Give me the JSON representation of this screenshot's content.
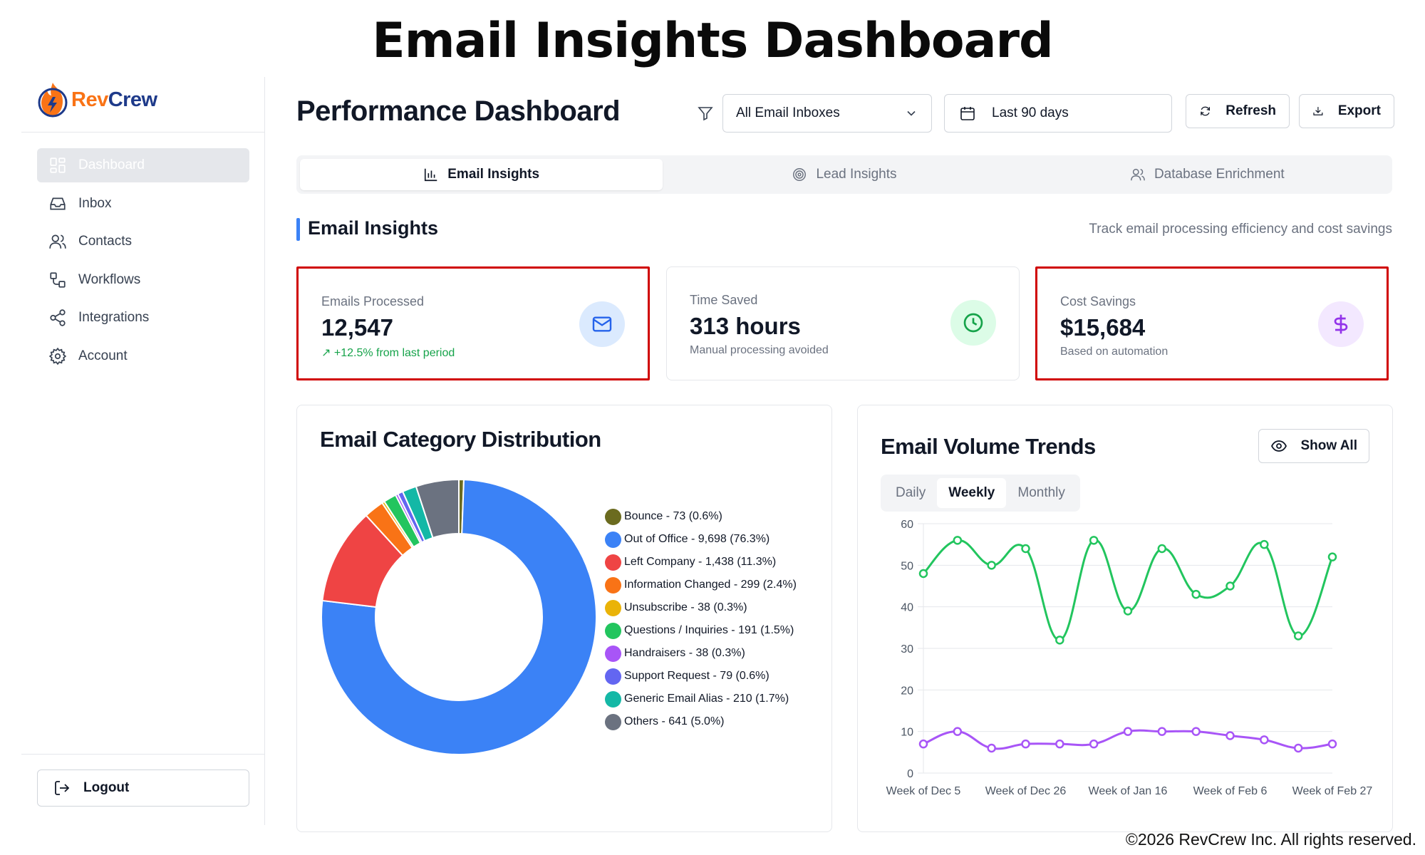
{
  "banner": {
    "title": "Email Insights Dashboard"
  },
  "footer": {
    "copyright": "©2026 RevCrew Inc. All rights reserved."
  },
  "brand": {
    "name_part1": "Rev",
    "name_part2": "Crew",
    "orange": "#f97316",
    "navy": "#1e3a8a"
  },
  "sidebar": {
    "items": [
      {
        "label": "Dashboard",
        "icon": "dashboard-grid-icon",
        "active": true
      },
      {
        "label": "Inbox",
        "icon": "inbox-tray-icon"
      },
      {
        "label": "Contacts",
        "icon": "users-icon"
      },
      {
        "label": "Workflows",
        "icon": "workflow-icon"
      },
      {
        "label": "Integrations",
        "icon": "share-nodes-icon"
      },
      {
        "label": "Account",
        "icon": "gear-icon"
      }
    ],
    "logout_label": "Logout"
  },
  "header": {
    "title": "Performance Dashboard",
    "inbox_select": "All Email Inboxes",
    "date_range": "Last 90 days",
    "refresh_label": "Refresh",
    "export_label": "Export"
  },
  "tabs": [
    {
      "label": "Email Insights",
      "active": true
    },
    {
      "label": "Lead Insights"
    },
    {
      "label": "Database Enrichment"
    }
  ],
  "section": {
    "title": "Email Insights",
    "subtitle": "Track email processing efficiency and cost savings"
  },
  "stats": [
    {
      "label": "Emails Processed",
      "value": "12,547",
      "note": "↗ +12.5% from last period"
    },
    {
      "label": "Time Saved",
      "value": "313 hours",
      "note": "Manual processing avoided"
    },
    {
      "label": "Cost Savings",
      "value": "$15,684",
      "note": "Based on automation"
    }
  ],
  "colors": {
    "accent": "#3b82f6",
    "highlight_border": "#d00000",
    "green": "#22c55e",
    "purple": "#a855f7"
  },
  "category_panel": {
    "title": "Email Category Distribution"
  },
  "trend_panel": {
    "title": "Email Volume Trends",
    "show_all_label": "Show All",
    "periods": [
      "Daily",
      "Weekly",
      "Monthly"
    ],
    "active_period": "Weekly"
  },
  "chart_data": [
    {
      "type": "pie",
      "title": "Email Category Distribution",
      "donut": true,
      "slices": [
        {
          "label": "Bounce - 73 (0.6%)",
          "value": 73,
          "percent": 0.6,
          "color": "#6b6b1f"
        },
        {
          "label": "Out of Office - 9,698 (76.3%)",
          "value": 9698,
          "percent": 76.3,
          "color": "#3b82f6"
        },
        {
          "label": "Left Company - 1,438 (11.3%)",
          "value": 1438,
          "percent": 11.3,
          "color": "#ef4444"
        },
        {
          "label": "Information Changed - 299 (2.4%)",
          "value": 299,
          "percent": 2.4,
          "color": "#f97316"
        },
        {
          "label": "Unsubscribe - 38 (0.3%)",
          "value": 38,
          "percent": 0.3,
          "color": "#eab308"
        },
        {
          "label": "Questions / Inquiries - 191 (1.5%)",
          "value": 191,
          "percent": 1.5,
          "color": "#22c55e"
        },
        {
          "label": "Handraisers - 38 (0.3%)",
          "value": 38,
          "percent": 0.3,
          "color": "#a855f7"
        },
        {
          "label": "Support Request - 79 (0.6%)",
          "value": 79,
          "percent": 0.6,
          "color": "#6366f1"
        },
        {
          "label": "Generic Email Alias - 210 (1.7%)",
          "value": 210,
          "percent": 1.7,
          "color": "#14b8a6"
        },
        {
          "label": "Others - 641 (5.0%)",
          "value": 641,
          "percent": 5.0,
          "color": "#6b7280"
        }
      ]
    },
    {
      "type": "line",
      "title": "Email Volume Trends",
      "x_tick_labels": [
        "Week of Dec 5",
        "Week of Dec 26",
        "Week of Jan 16",
        "Week of Feb 6",
        "Week of Feb 27"
      ],
      "x_tick_positions": [
        0,
        3,
        6,
        9,
        12
      ],
      "ylim": [
        0,
        60
      ],
      "yticks": [
        0,
        10,
        20,
        30,
        40,
        50,
        60
      ],
      "series": [
        {
          "name": "green",
          "color": "#22c55e",
          "values": [
            48,
            56,
            50,
            54,
            32,
            56,
            39,
            54,
            43,
            45,
            55,
            33,
            52
          ]
        },
        {
          "name": "purple",
          "color": "#a855f7",
          "values": [
            7,
            10,
            6,
            7,
            7,
            7,
            10,
            10,
            10,
            9,
            8,
            6,
            7
          ]
        }
      ]
    }
  ]
}
